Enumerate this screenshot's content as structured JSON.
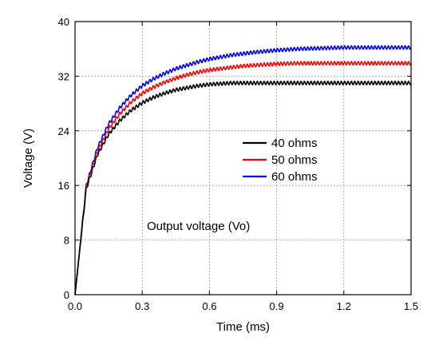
{
  "chart_data": {
    "type": "line",
    "xlabel": "Time (ms)",
    "ylabel": "Voltage (V)",
    "xlim": [
      0,
      1.5
    ],
    "ylim": [
      0,
      40
    ],
    "x_ticks": [
      0.0,
      0.3,
      0.6,
      0.9,
      1.2,
      1.5
    ],
    "x_tick_labels": [
      "0.0",
      "0.3",
      "0.6",
      "0.9",
      "1.2",
      "1.5"
    ],
    "y_ticks": [
      0,
      8,
      16,
      24,
      32,
      40
    ],
    "y_tick_labels": [
      "0",
      "8",
      "16",
      "24",
      "32",
      "40"
    ],
    "grid": true,
    "legend_position": "center-right",
    "annotation": "Output voltage (Vo)",
    "x": [
      0.0,
      0.05,
      0.1,
      0.15,
      0.2,
      0.25,
      0.3,
      0.35,
      0.4,
      0.45,
      0.5,
      0.55,
      0.6,
      0.65,
      0.7,
      0.75,
      0.8,
      0.9,
      1.0,
      1.1,
      1.2,
      1.3,
      1.4,
      1.5
    ],
    "series": [
      {
        "name": "40 ohms",
        "color": "#000000",
        "values": [
          0.0,
          15.5,
          20.5,
          23.5,
          25.5,
          27.0,
          28.1,
          28.9,
          29.5,
          30.0,
          30.3,
          30.6,
          30.8,
          30.9,
          31.0,
          31.0,
          31.0,
          31.0,
          31.0,
          31.0,
          31.0,
          31.0,
          31.0,
          31.0
        ]
      },
      {
        "name": "50 ohms",
        "color": "#ff0000",
        "values": [
          0.0,
          15.8,
          21.0,
          24.3,
          26.5,
          28.2,
          29.5,
          30.4,
          31.1,
          31.7,
          32.2,
          32.6,
          32.9,
          33.1,
          33.3,
          33.5,
          33.6,
          33.8,
          33.9,
          33.9,
          33.9,
          33.9,
          33.9,
          33.9
        ]
      },
      {
        "name": "60 ohms",
        "color": "#0000ff",
        "values": [
          0.0,
          16.0,
          21.5,
          25.0,
          27.4,
          29.2,
          30.6,
          31.6,
          32.4,
          33.1,
          33.6,
          34.1,
          34.5,
          34.8,
          35.1,
          35.3,
          35.5,
          35.8,
          36.0,
          36.1,
          36.2,
          36.2,
          36.2,
          36.2
        ]
      }
    ]
  }
}
